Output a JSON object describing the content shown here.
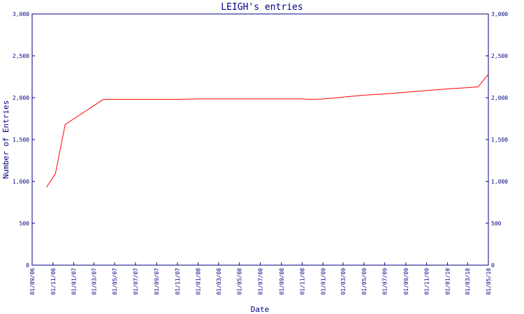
{
  "chart_data": {
    "type": "line",
    "title": "LEIGH's entries",
    "xlabel": "Date",
    "ylabel": "Number of Entries",
    "ylim": [
      0,
      3000
    ],
    "y_ticks": [
      0,
      500,
      1000,
      1500,
      2000,
      2500,
      3000
    ],
    "y_tick_labels": [
      "0",
      "500",
      "1,000",
      "1,500",
      "2,000",
      "2,500",
      "3,000"
    ],
    "x_ticks": [
      "2006-09-01",
      "2006-11-01",
      "2007-01-01",
      "2007-03-01",
      "2007-05-01",
      "2007-07-01",
      "2007-09-01",
      "2007-11-01",
      "2008-01-01",
      "2008-03-01",
      "2008-05-01",
      "2008-07-01",
      "2008-09-01",
      "2008-11-01",
      "2009-01-01",
      "2009-03-01",
      "2009-05-01",
      "2009-07-01",
      "2009-09-01",
      "2009-11-01",
      "2010-01-01",
      "2010-03-01",
      "2010-05-01"
    ],
    "x_tick_labels": [
      "01/09/06",
      "01/11/06",
      "01/01/07",
      "01/03/07",
      "01/05/07",
      "01/07/07",
      "01/09/07",
      "01/11/07",
      "01/01/08",
      "01/03/08",
      "01/05/08",
      "01/07/08",
      "01/09/08",
      "01/11/08",
      "01/01/09",
      "01/03/09",
      "01/05/09",
      "01/07/09",
      "01/09/09",
      "01/11/09",
      "01/01/10",
      "01/03/10",
      "01/05/10"
    ],
    "xlim": [
      "2006-09-01",
      "2010-05-01"
    ],
    "right_axis": true,
    "grid": false,
    "color": "#ff0000",
    "series": [
      {
        "points": [
          [
            "2006-10-13",
            930
          ],
          [
            "2006-11-08",
            1090
          ],
          [
            "2006-12-07",
            1680
          ],
          [
            "2007-03-29",
            1980
          ],
          [
            "2007-05-15",
            1980
          ],
          [
            "2007-11-01",
            1980
          ],
          [
            "2008-01-01",
            1985
          ],
          [
            "2008-07-01",
            1985
          ],
          [
            "2008-11-01",
            1985
          ],
          [
            "2008-11-20",
            1980
          ],
          [
            "2008-12-28",
            1983
          ],
          [
            "2009-05-01",
            2030
          ],
          [
            "2009-07-01",
            2045
          ],
          [
            "2009-09-01",
            2065
          ],
          [
            "2009-11-01",
            2085
          ],
          [
            "2010-01-01",
            2105
          ],
          [
            "2010-03-01",
            2120
          ],
          [
            "2010-04-01",
            2130
          ],
          [
            "2010-05-01",
            2280
          ]
        ]
      }
    ]
  }
}
